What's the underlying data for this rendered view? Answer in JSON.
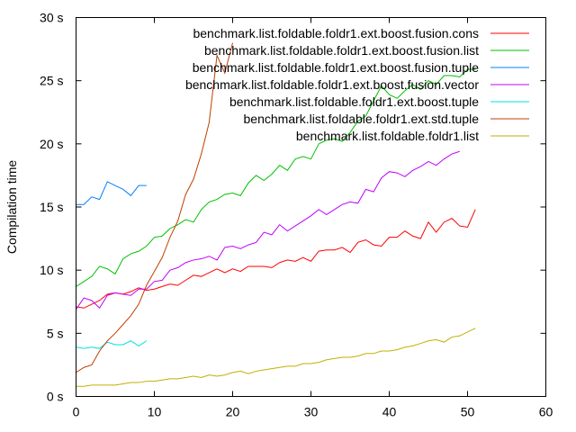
{
  "chart_data": {
    "type": "line",
    "title": "",
    "xlabel": "",
    "ylabel": "Compilation time",
    "xlim": [
      0,
      60
    ],
    "ylim": [
      0,
      30
    ],
    "x_ticks": [
      0,
      10,
      20,
      30,
      40,
      50,
      60
    ],
    "y_ticks": [
      {
        "value": 0,
        "label": "0 s"
      },
      {
        "value": 5,
        "label": "5 s"
      },
      {
        "value": 10,
        "label": "10 s"
      },
      {
        "value": 15,
        "label": "15 s"
      },
      {
        "value": 20,
        "label": "20 s"
      },
      {
        "value": 25,
        "label": "25 s"
      },
      {
        "value": 30,
        "label": "30 s"
      }
    ],
    "grid": false,
    "legend_position": "top-right",
    "series": [
      {
        "name": "benchmark.list.foldable.foldr1.ext.boost.fusion.cons",
        "color": "#ff0000",
        "x": [
          0,
          1,
          2,
          3,
          4,
          5,
          6,
          7,
          8,
          9,
          10,
          11,
          12,
          13,
          14,
          15,
          16,
          17,
          18,
          19,
          20,
          21,
          22,
          23,
          24,
          25,
          26,
          27,
          28,
          29,
          30,
          31,
          32,
          33,
          34,
          35,
          36,
          37,
          38,
          39,
          40,
          41,
          42,
          43,
          44,
          45,
          46,
          47,
          48,
          49,
          50,
          51
        ],
        "values": [
          7.1,
          7.0,
          7.3,
          7.6,
          8.1,
          8.2,
          8.1,
          8.3,
          8.6,
          8.4,
          8.5,
          8.7,
          8.9,
          8.8,
          9.2,
          9.6,
          9.5,
          9.8,
          10.1,
          9.8,
          10.1,
          9.9,
          10.3,
          10.3,
          10.3,
          10.2,
          10.6,
          10.8,
          10.7,
          11.0,
          10.7,
          11.5,
          11.6,
          11.6,
          11.8,
          11.4,
          12.2,
          12.4,
          12.0,
          11.9,
          12.6,
          12.6,
          13.1,
          12.7,
          12.5,
          13.8,
          13.0,
          13.8,
          14.1,
          13.5,
          13.4,
          14.8
        ]
      },
      {
        "name": "benchmark.list.foldable.foldr1.ext.boost.fusion.list",
        "color": "#00c000",
        "x": [
          0,
          1,
          2,
          3,
          4,
          5,
          6,
          7,
          8,
          9,
          10,
          11,
          12,
          13,
          14,
          15,
          16,
          17,
          18,
          19,
          20,
          21,
          22,
          23,
          24,
          25,
          26,
          27,
          28,
          29,
          30,
          31,
          32,
          33,
          34,
          35,
          36,
          37,
          38,
          39,
          40,
          41,
          42,
          43,
          44,
          45,
          46,
          47,
          48,
          49,
          50,
          51
        ],
        "values": [
          8.7,
          9.1,
          9.5,
          10.3,
          10.1,
          9.7,
          10.9,
          11.3,
          11.5,
          11.9,
          12.6,
          12.7,
          13.3,
          13.6,
          14.0,
          13.8,
          14.8,
          15.4,
          15.6,
          16.0,
          16.1,
          15.9,
          16.9,
          17.5,
          17.1,
          17.6,
          18.3,
          17.9,
          18.8,
          19.0,
          18.8,
          20.0,
          20.3,
          20.4,
          20.2,
          20.9,
          21.8,
          22.2,
          23.4,
          24.6,
          23.9,
          23.6,
          24.2,
          24.7,
          24.3,
          25.0,
          24.7,
          25.4,
          25.4,
          25.3,
          25.9,
          25.9
        ]
      },
      {
        "name": "benchmark.list.foldable.foldr1.ext.boost.fusion.tuple",
        "color": "#0080ff",
        "x": [
          0,
          1,
          2,
          3,
          4,
          5,
          6,
          7,
          8,
          9
        ],
        "values": [
          15.2,
          15.2,
          15.8,
          15.6,
          17.0,
          16.7,
          16.4,
          15.9,
          16.7,
          16.7
        ]
      },
      {
        "name": "benchmark.list.foldable.foldr1.ext.boost.fusion.vector",
        "color": "#c000ff",
        "x": [
          0,
          1,
          2,
          3,
          4,
          5,
          6,
          7,
          8,
          9,
          10,
          11,
          12,
          13,
          14,
          15,
          16,
          17,
          18,
          19,
          20,
          21,
          22,
          23,
          24,
          25,
          26,
          27,
          28,
          29,
          30,
          31,
          32,
          33,
          34,
          35,
          36,
          37,
          38,
          39,
          40,
          41,
          42,
          43,
          44,
          45,
          46,
          47,
          48,
          49
        ],
        "values": [
          6.9,
          7.8,
          7.6,
          7.0,
          8.0,
          8.2,
          8.1,
          8.0,
          8.5,
          8.5,
          9.1,
          9.2,
          10.0,
          10.2,
          10.6,
          10.8,
          10.9,
          11.1,
          10.8,
          11.8,
          11.9,
          11.7,
          12.0,
          12.2,
          13.0,
          12.8,
          13.6,
          13.1,
          13.5,
          13.9,
          14.3,
          14.8,
          14.4,
          14.8,
          15.2,
          15.4,
          15.3,
          16.4,
          16.2,
          17.3,
          17.8,
          17.7,
          17.4,
          17.9,
          18.2,
          18.6,
          18.3,
          18.8,
          19.2,
          19.4
        ]
      },
      {
        "name": "benchmark.list.foldable.foldr1.ext.boost.tuple",
        "color": "#00e0e0",
        "x": [
          0,
          1,
          2,
          3,
          4,
          5,
          6,
          7,
          8,
          9
        ],
        "values": [
          3.9,
          3.8,
          3.9,
          3.8,
          4.3,
          4.1,
          4.1,
          4.4,
          4.0,
          4.4
        ]
      },
      {
        "name": "benchmark.list.foldable.foldr1.ext.std.tuple",
        "color": "#c04000",
        "x": [
          0,
          1,
          2,
          3,
          4,
          5,
          6,
          7,
          8,
          9,
          10,
          11,
          12,
          13,
          14,
          15,
          16,
          17,
          18,
          19,
          20
        ],
        "values": [
          1.9,
          2.3,
          2.5,
          3.6,
          4.4,
          5.0,
          5.7,
          6.4,
          7.3,
          8.8,
          9.9,
          11.0,
          12.6,
          13.9,
          16.0,
          17.2,
          19.2,
          21.7,
          27.0,
          25.6,
          28.0
        ]
      },
      {
        "name": "benchmark.list.foldable.foldr1.list",
        "color": "#c0b000",
        "x": [
          0,
          1,
          2,
          3,
          4,
          5,
          6,
          7,
          8,
          9,
          10,
          11,
          12,
          13,
          14,
          15,
          16,
          17,
          18,
          19,
          20,
          21,
          22,
          23,
          24,
          25,
          26,
          27,
          28,
          29,
          30,
          31,
          32,
          33,
          34,
          35,
          36,
          37,
          38,
          39,
          40,
          41,
          42,
          43,
          44,
          45,
          46,
          47,
          48,
          49,
          50,
          51
        ],
        "values": [
          0.8,
          0.8,
          0.9,
          0.9,
          0.9,
          0.9,
          1.0,
          1.1,
          1.1,
          1.2,
          1.2,
          1.3,
          1.4,
          1.4,
          1.5,
          1.6,
          1.5,
          1.7,
          1.6,
          1.7,
          1.9,
          2.0,
          1.8,
          2.0,
          2.1,
          2.2,
          2.3,
          2.4,
          2.4,
          2.6,
          2.6,
          2.7,
          2.9,
          3.0,
          3.1,
          3.1,
          3.2,
          3.4,
          3.4,
          3.6,
          3.6,
          3.7,
          3.9,
          4.0,
          4.2,
          4.4,
          4.5,
          4.3,
          4.7,
          4.8,
          5.1,
          5.4
        ]
      }
    ]
  }
}
